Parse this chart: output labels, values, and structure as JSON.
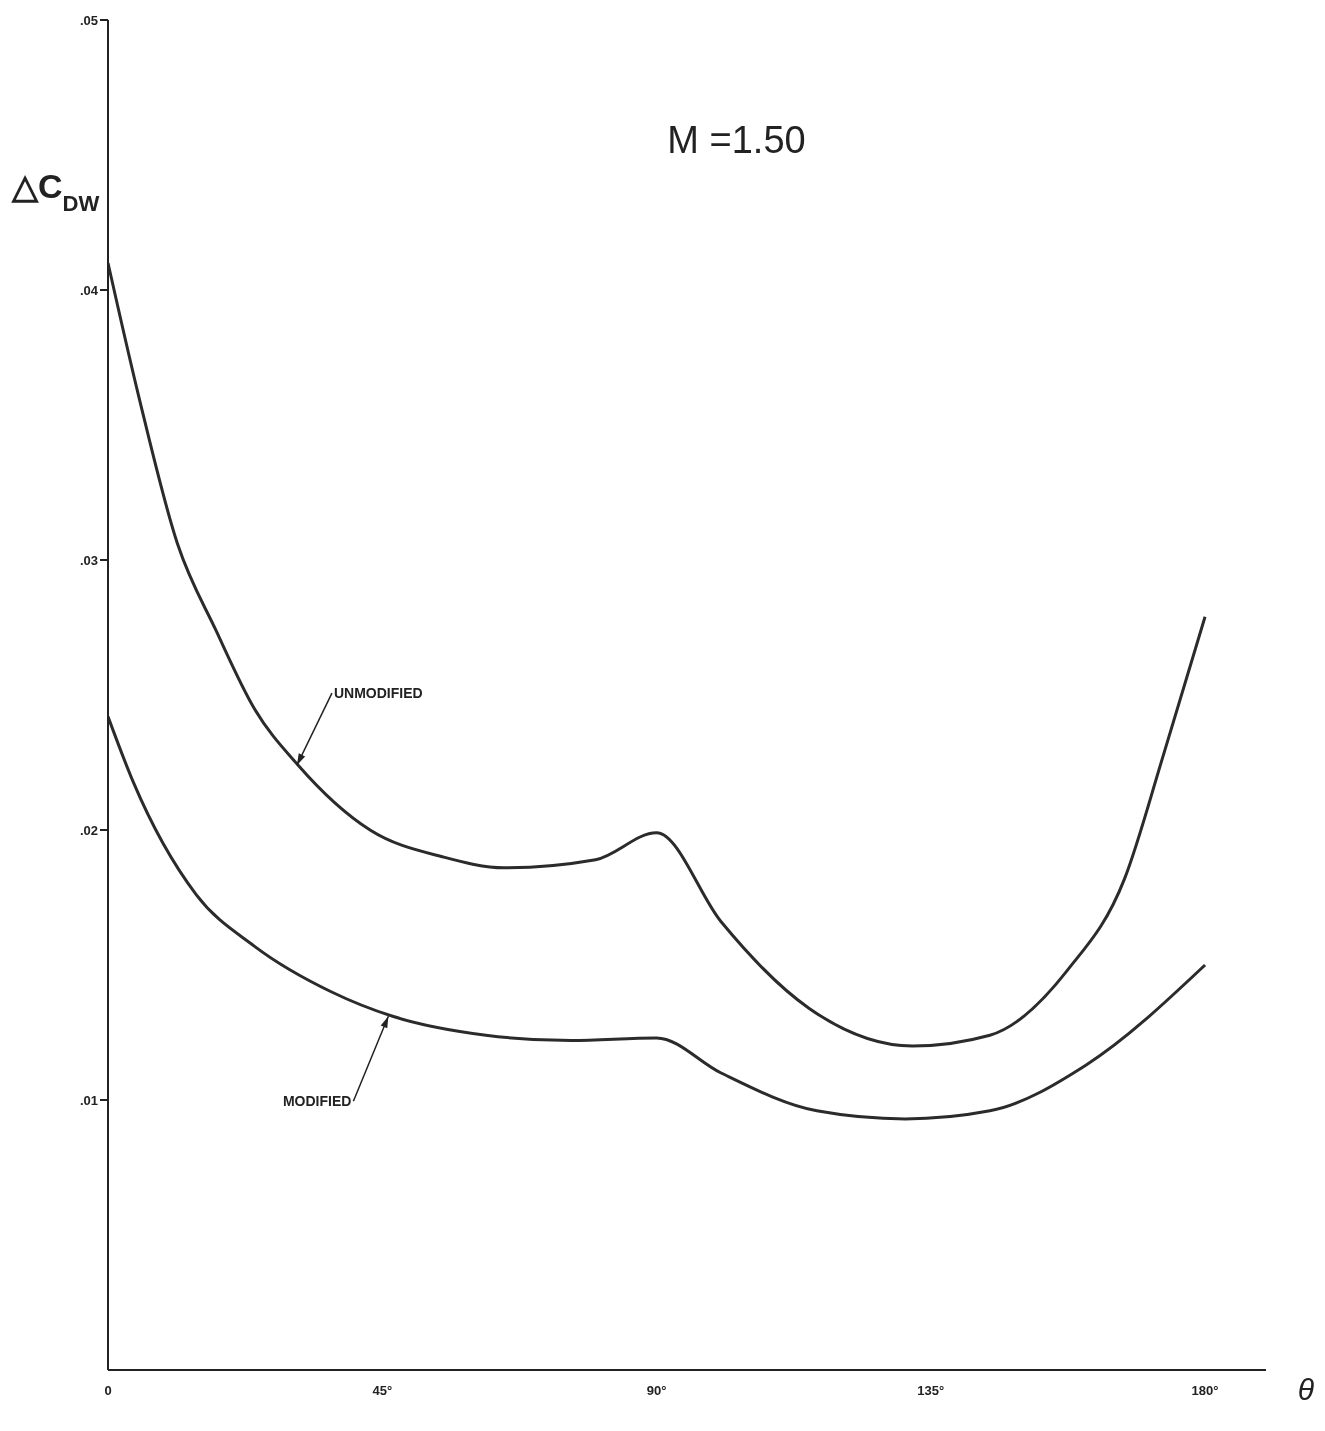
{
  "chart_data": {
    "type": "line",
    "title": "M =1.50",
    "xlabel": "θ",
    "ylabel": "△C$_{DW}$",
    "xlim": [
      0,
      190
    ],
    "ylim": [
      0,
      0.05
    ],
    "xticks": [
      0,
      {
        "value": 45,
        "label": "45°"
      },
      {
        "value": 90,
        "label": "90°"
      },
      {
        "value": 135,
        "label": "135°"
      },
      {
        "value": 180,
        "label": "180°"
      }
    ],
    "yticks": [
      {
        "value": 0.01,
        "label": ".01"
      },
      {
        "value": 0.02,
        "label": ".02"
      },
      {
        "value": 0.03,
        "label": ".03"
      },
      {
        "value": 0.04,
        "label": ".04"
      },
      {
        "value": 0.05,
        "label": ".05"
      }
    ],
    "series": [
      {
        "color": "#2b2b2b",
        "x": [
          0,
          5,
          11.4,
          17.7,
          24,
          31.2,
          43,
          55,
          65,
          80,
          90,
          100.6,
          115,
          132,
          144.7,
          157.4,
          166.8,
          173.2,
          180
        ],
        "values": [
          0.041,
          0.0361,
          0.0306,
          0.0274,
          0.0245,
          0.0224,
          0.02,
          0.019,
          0.0186,
          0.0189,
          0.0199,
          0.0166,
          0.0134,
          0.012,
          0.0124,
          0.0148,
          0.0182,
          0.0228,
          0.0279
        ]
      },
      {
        "color": "#2b2b2b",
        "x": [
          0,
          4.1,
          14.5,
          24,
          36.7,
          46.7,
          62,
          76,
          90,
          100.6,
          116.3,
          130.8,
          144.7,
          160.5,
          180
        ],
        "values": [
          0.0242,
          0.0218,
          0.0176,
          0.0157,
          0.014,
          0.0131,
          0.0124,
          0.0122,
          0.0123,
          0.011,
          0.0096,
          0.0093,
          0.0096,
          0.0113,
          0.015
        ]
      }
    ],
    "annotations": [
      {
        "text": "UNMODIFIED",
        "x": 31,
        "y": 0.0224
      },
      {
        "text": "MODIFIED",
        "x": 46,
        "y": 0.0131
      }
    ],
    "grid": false,
    "legend": false
  }
}
